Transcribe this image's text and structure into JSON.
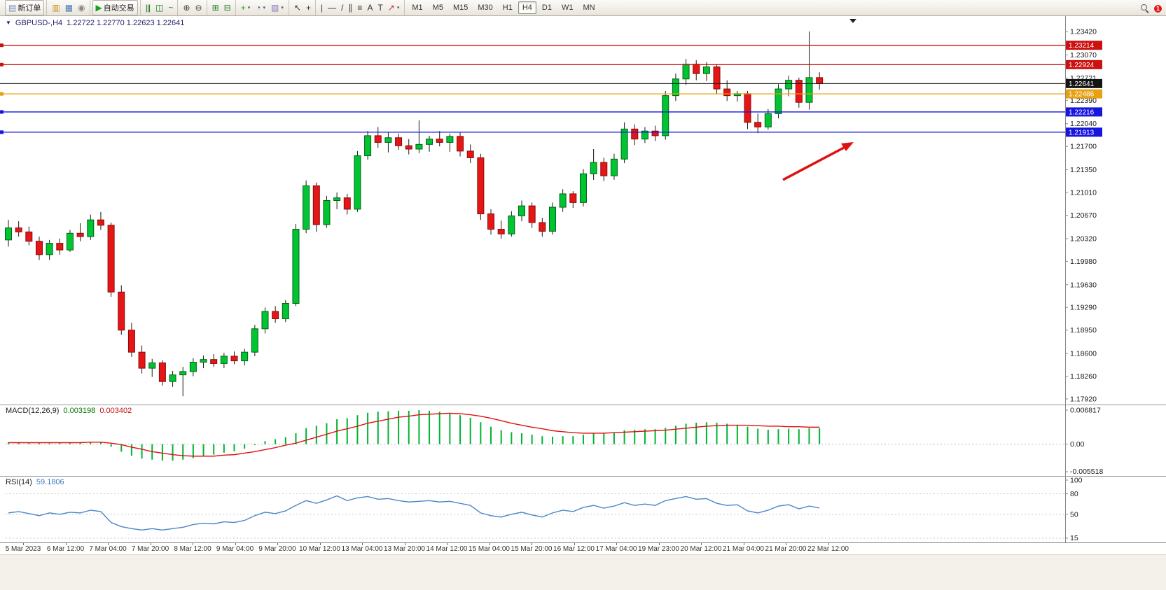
{
  "toolbar": {
    "groups": [
      [
        {
          "name": "new-order-button",
          "glyph": "▤",
          "glyph_color": "#7a90b8",
          "text": "新订单",
          "raised": true
        }
      ],
      [
        {
          "name": "market-watch-button",
          "glyph": "▥",
          "glyph_color": "#c89018"
        },
        {
          "name": "data-window-button",
          "glyph": "▦",
          "glyph_color": "#4878b8"
        },
        {
          "name": "navigator-button",
          "glyph": "◉",
          "glyph_color": "#8a877d"
        }
      ],
      [
        {
          "name": "autotrade-button",
          "glyph": "▶",
          "glyph_color": "#18a018",
          "text": "自动交易",
          "raised": true
        }
      ],
      [
        {
          "name": "bar-chart-button",
          "glyph": "|||",
          "glyph_color": "#1f7a1f"
        },
        {
          "name": "candlestick-button",
          "glyph": "◫",
          "glyph_color": "#1f7a1f"
        },
        {
          "name": "line-chart-button",
          "glyph": "~",
          "glyph_color": "#1f7a1f"
        }
      ],
      [
        {
          "name": "zoom-in-button",
          "glyph": "⊕",
          "glyph_color": "#444444"
        },
        {
          "name": "zoom-out-button",
          "glyph": "⊖",
          "glyph_color": "#444444"
        }
      ],
      [
        {
          "name": "tile-windows-button",
          "glyph": "⊞",
          "glyph_color": "#1f7a1f"
        },
        {
          "name": "arrange-windows-button",
          "glyph": "⊟",
          "glyph_color": "#1f7a1f"
        }
      ],
      [
        {
          "name": "new-chart-button",
          "glyph": "+",
          "glyph_color": "#18a018",
          "dropdown": true
        },
        {
          "name": "period-button",
          "glyph": "◔",
          "glyph_color": "#3868a8",
          "dropdown": true
        },
        {
          "name": "template-button",
          "glyph": "▧",
          "glyph_color": "#8878b8",
          "dropdown": true
        }
      ],
      [
        {
          "name": "cursor-button",
          "glyph": "↖",
          "glyph_color": "#303030"
        },
        {
          "name": "crosshair-button",
          "glyph": "+",
          "glyph_color": "#303030"
        }
      ],
      [
        {
          "name": "vertical-line-button",
          "glyph": "|",
          "glyph_color": "#303030"
        },
        {
          "name": "horizontal-line-button",
          "glyph": "—",
          "glyph_color": "#303030"
        },
        {
          "name": "trendline-button",
          "glyph": "/",
          "glyph_color": "#303030"
        },
        {
          "name": "channel-button",
          "glyph": "∥",
          "glyph_color": "#303030"
        },
        {
          "name": "fibonacci-button",
          "glyph": "≡",
          "glyph_color": "#303030"
        },
        {
          "name": "text-button",
          "glyph": "A",
          "glyph_color": "#303030"
        },
        {
          "name": "label-button",
          "glyph": "T",
          "glyph_color": "#303030"
        },
        {
          "name": "arrows-button",
          "glyph": "↗",
          "glyph_color": "#c03030",
          "dropdown": true
        }
      ]
    ],
    "timeframes": [
      {
        "label": "M1"
      },
      {
        "label": "M5"
      },
      {
        "label": "M15"
      },
      {
        "label": "M30"
      },
      {
        "label": "H1"
      },
      {
        "label": "H4",
        "active": true
      },
      {
        "label": "D1"
      },
      {
        "label": "W1"
      },
      {
        "label": "MN"
      }
    ],
    "notification_count": "1"
  },
  "chart": {
    "collapse_glyph": "▼",
    "symbol_label": "GBPUSD-,H4",
    "ohlc_text": "1.22722 1.22770 1.22623 1.22641",
    "axis": {
      "price_max": 1.2342,
      "price_min": 1.1792,
      "price_ticks": [
        "1.23420",
        "1.23070",
        "1.22721",
        "1.22390",
        "1.22040",
        "1.21700",
        "1.21350",
        "1.21010",
        "1.20670",
        "1.20320",
        "1.19980",
        "1.19630",
        "1.19290",
        "1.18950",
        "1.18600",
        "1.18260",
        "1.17920"
      ]
    },
    "levels": [
      {
        "price": 1.23214,
        "label": "1.23214",
        "color": "#cc1111",
        "type": "line"
      },
      {
        "price": 1.22924,
        "label": "1.22924",
        "color": "#cc1111",
        "type": "line"
      },
      {
        "price": 1.22641,
        "label": "1.22641",
        "color": "#141414",
        "type": "current"
      },
      {
        "price": 1.22486,
        "label": "1.22486",
        "color": "#e6a012",
        "type": "line"
      },
      {
        "price": 1.22216,
        "label": "1.22216",
        "color": "#1616dd",
        "type": "line"
      },
      {
        "price": 1.21913,
        "label": "1.21913",
        "color": "#1616dd",
        "type": "line"
      }
    ],
    "dates": [
      "5 Mar 2023",
      "6 Mar 12:00",
      "7 Mar 04:00",
      "7 Mar 20:00",
      "8 Mar 12:00",
      "9 Mar 04:00",
      "9 Mar 20:00",
      "10 Mar 12:00",
      "13 Mar 04:00",
      "13 Mar 20:00",
      "14 Mar 12:00",
      "15 Mar 04:00",
      "15 Mar 20:00",
      "16 Mar 12:00",
      "17 Mar 04:00",
      "19 Mar 23:00",
      "20 Mar 12:00",
      "21 Mar 04:00",
      "21 Mar 20:00",
      "22 Mar 12:00"
    ],
    "candles": [
      [
        1.203,
        1.206,
        1.202,
        1.2048
      ],
      [
        1.2048,
        1.2058,
        1.2035,
        1.2042
      ],
      [
        1.2042,
        1.205,
        1.2022,
        1.2028
      ],
      [
        1.2028,
        1.2035,
        1.2,
        1.2008
      ],
      [
        1.2008,
        1.203,
        1.2,
        1.2025
      ],
      [
        1.2025,
        1.2032,
        1.2008,
        1.2015
      ],
      [
        1.2015,
        1.2045,
        1.2012,
        1.204
      ],
      [
        1.204,
        1.2055,
        1.2028,
        1.2035
      ],
      [
        1.2035,
        1.2068,
        1.203,
        1.206
      ],
      [
        1.206,
        1.2072,
        1.2045,
        1.2052
      ],
      [
        1.2052,
        1.2056,
        1.1945,
        1.1952
      ],
      [
        1.1952,
        1.1962,
        1.1888,
        1.1895
      ],
      [
        1.1895,
        1.1906,
        1.1855,
        1.1862
      ],
      [
        1.1862,
        1.1872,
        1.183,
        1.1838
      ],
      [
        1.1838,
        1.1852,
        1.1825,
        1.1846
      ],
      [
        1.1846,
        1.185,
        1.1812,
        1.1818
      ],
      [
        1.1818,
        1.1834,
        1.181,
        1.1828
      ],
      [
        1.1828,
        1.184,
        1.1796,
        1.1833
      ],
      [
        1.1833,
        1.1853,
        1.1826,
        1.1847
      ],
      [
        1.1847,
        1.1857,
        1.1838,
        1.1851
      ],
      [
        1.1851,
        1.1859,
        1.184,
        1.1845
      ],
      [
        1.1845,
        1.1861,
        1.1838,
        1.1856
      ],
      [
        1.1856,
        1.1863,
        1.1844,
        1.1849
      ],
      [
        1.1849,
        1.1867,
        1.1842,
        1.1862
      ],
      [
        1.1862,
        1.1903,
        1.1856,
        1.1897
      ],
      [
        1.1897,
        1.1929,
        1.189,
        1.1923
      ],
      [
        1.1923,
        1.1931,
        1.1906,
        1.1912
      ],
      [
        1.1912,
        1.194,
        1.1907,
        1.1935
      ],
      [
        1.1935,
        1.2054,
        1.1931,
        1.2046
      ],
      [
        1.2046,
        1.2119,
        1.204,
        1.2111
      ],
      [
        1.2111,
        1.2116,
        1.2042,
        1.2053
      ],
      [
        1.2053,
        1.2096,
        1.2048,
        1.2089
      ],
      [
        1.2089,
        1.2101,
        1.2076,
        1.2093
      ],
      [
        1.2093,
        1.2099,
        1.2068,
        1.2076
      ],
      [
        1.2076,
        1.2163,
        1.2072,
        1.2156
      ],
      [
        1.2156,
        1.2193,
        1.215,
        1.2186
      ],
      [
        1.2186,
        1.2199,
        1.2168,
        1.2176
      ],
      [
        1.2176,
        1.2191,
        1.2161,
        1.2183
      ],
      [
        1.2183,
        1.2189,
        1.2165,
        1.2171
      ],
      [
        1.2171,
        1.2181,
        1.2158,
        1.2166
      ],
      [
        1.2166,
        1.2209,
        1.216,
        1.2173
      ],
      [
        1.2173,
        1.2186,
        1.2162,
        1.2181
      ],
      [
        1.2181,
        1.2193,
        1.217,
        1.2176
      ],
      [
        1.2176,
        1.2189,
        1.2162,
        1.2185
      ],
      [
        1.2185,
        1.2191,
        1.2155,
        1.2163
      ],
      [
        1.2163,
        1.2173,
        1.2145,
        1.2153
      ],
      [
        1.2153,
        1.2159,
        1.206,
        1.2069
      ],
      [
        1.2069,
        1.2076,
        1.2038,
        1.2046
      ],
      [
        1.2046,
        1.2059,
        1.2032,
        1.2039
      ],
      [
        1.2039,
        1.2073,
        1.2035,
        1.2066
      ],
      [
        1.2066,
        1.2089,
        1.2058,
        1.2081
      ],
      [
        1.2081,
        1.2086,
        1.2048,
        1.2056
      ],
      [
        1.2056,
        1.2063,
        1.2035,
        1.2043
      ],
      [
        1.2043,
        1.2086,
        1.2038,
        1.2079
      ],
      [
        1.2079,
        1.2106,
        1.2072,
        1.2099
      ],
      [
        1.2099,
        1.2103,
        1.2078,
        1.2086
      ],
      [
        1.2086,
        1.2136,
        1.208,
        1.2129
      ],
      [
        1.2129,
        1.2166,
        1.212,
        1.2146
      ],
      [
        1.2146,
        1.2153,
        1.2118,
        1.2126
      ],
      [
        1.2126,
        1.2159,
        1.212,
        1.2151
      ],
      [
        1.2151,
        1.2206,
        1.2145,
        1.2196
      ],
      [
        1.2196,
        1.2203,
        1.2172,
        1.2181
      ],
      [
        1.2181,
        1.2199,
        1.2175,
        1.2193
      ],
      [
        1.2193,
        1.2201,
        1.2178,
        1.2186
      ],
      [
        1.2186,
        1.2253,
        1.218,
        1.2246
      ],
      [
        1.2246,
        1.2279,
        1.2238,
        1.2271
      ],
      [
        1.2271,
        1.2301,
        1.2262,
        1.2293
      ],
      [
        1.2293,
        1.2299,
        1.2269,
        1.2279
      ],
      [
        1.2279,
        1.2296,
        1.2268,
        1.2289
      ],
      [
        1.2289,
        1.2293,
        1.2248,
        1.2256
      ],
      [
        1.2256,
        1.2269,
        1.2238,
        1.2246
      ],
      [
        1.2246,
        1.2253,
        1.2237,
        1.2249
      ],
      [
        1.2249,
        1.2253,
        1.2196,
        1.2206
      ],
      [
        1.2206,
        1.2219,
        1.219,
        1.2199
      ],
      [
        1.2199,
        1.2226,
        1.2195,
        1.2219
      ],
      [
        1.2219,
        1.2263,
        1.2212,
        1.2256
      ],
      [
        1.2256,
        1.2276,
        1.2245,
        1.2269
      ],
      [
        1.2269,
        1.2273,
        1.2228,
        1.2236
      ],
      [
        1.2236,
        1.2342,
        1.2225,
        1.2273
      ],
      [
        1.2273,
        1.2281,
        1.2255,
        1.22641
      ]
    ]
  },
  "macd": {
    "title": "MACD(12,26,9)",
    "value_main": "0.003198",
    "value_signal": "0.003402",
    "axis": [
      "0.006817",
      "0.00",
      "-0.005518"
    ],
    "histogram": [
      0.0004,
      0.0004,
      0.0003,
      0.0002,
      0.0002,
      0.0003,
      0.0003,
      0.0004,
      0.0005,
      0.0005,
      -0.0005,
      -0.0015,
      -0.0023,
      -0.0029,
      -0.0031,
      -0.0033,
      -0.0033,
      -0.0031,
      -0.0028,
      -0.0024,
      -0.0021,
      -0.0017,
      -0.0014,
      -0.0009,
      -0.0002,
      0.0006,
      0.001,
      0.0014,
      0.0022,
      0.0032,
      0.0037,
      0.0042,
      0.005,
      0.0052,
      0.0058,
      0.0063,
      0.0065,
      0.0066,
      0.0067,
      0.0067,
      0.0068,
      0.0067,
      0.0065,
      0.0062,
      0.0058,
      0.0053,
      0.0044,
      0.0035,
      0.0028,
      0.0024,
      0.0022,
      0.0019,
      0.0016,
      0.0015,
      0.0016,
      0.0016,
      0.0019,
      0.0022,
      0.0023,
      0.0024,
      0.0028,
      0.0029,
      0.003,
      0.003,
      0.0033,
      0.0037,
      0.0041,
      0.0043,
      0.0044,
      0.0043,
      0.0041,
      0.0039,
      0.0035,
      0.0031,
      0.0029,
      0.003,
      0.0031,
      0.003,
      0.0032,
      0.0032
    ],
    "signal": [
      0.0003,
      0.0003,
      0.0003,
      0.0003,
      0.0003,
      0.0003,
      0.0003,
      0.0003,
      0.0004,
      0.0004,
      0.0002,
      -0.0001,
      -0.0006,
      -0.001,
      -0.0015,
      -0.0018,
      -0.0021,
      -0.0023,
      -0.0024,
      -0.0024,
      -0.0024,
      -0.0022,
      -0.0021,
      -0.0018,
      -0.0015,
      -0.0011,
      -0.0007,
      -0.0002,
      0.0002,
      0.0008,
      0.0014,
      0.002,
      0.0026,
      0.0031,
      0.0036,
      0.0042,
      0.0046,
      0.005,
      0.0054,
      0.0056,
      0.0059,
      0.006,
      0.0061,
      0.0062,
      0.0061,
      0.0059,
      0.0056,
      0.0052,
      0.0047,
      0.0042,
      0.0038,
      0.0034,
      0.0031,
      0.0027,
      0.0025,
      0.0023,
      0.0022,
      0.0022,
      0.0022,
      0.0023,
      0.0024,
      0.0025,
      0.0026,
      0.0027,
      0.0028,
      0.003,
      0.0032,
      0.0034,
      0.0036,
      0.0037,
      0.0038,
      0.0038,
      0.0038,
      0.0037,
      0.0036,
      0.0036,
      0.0035,
      0.0035,
      0.0034,
      0.0034
    ]
  },
  "rsi": {
    "title": "RSI(14)",
    "value": "59.1806",
    "axis": [
      "100",
      "80",
      "50",
      "15"
    ],
    "values": [
      52,
      54,
      51,
      48,
      52,
      50,
      53,
      52,
      56,
      54,
      38,
      32,
      29,
      27,
      29,
      27,
      29,
      31,
      35,
      37,
      36,
      39,
      38,
      41,
      48,
      53,
      51,
      55,
      63,
      70,
      66,
      71,
      77,
      70,
      74,
      76,
      72,
      73,
      70,
      68,
      69,
      70,
      68,
      69,
      66,
      63,
      52,
      48,
      46,
      50,
      53,
      49,
      46,
      52,
      56,
      54,
      60,
      63,
      59,
      62,
      67,
      63,
      65,
      63,
      70,
      73,
      76,
      72,
      73,
      66,
      63,
      64,
      55,
      52,
      56,
      62,
      64,
      58,
      62,
      59.18
    ]
  },
  "colors": {
    "candle_up": "#00C432",
    "candle_up_border": "#006414",
    "candle_down": "#E41616",
    "candle_down_border": "#8c0808",
    "macd_histogram": "#00B432",
    "macd_signal": "#e01010",
    "rsi_line": "#4a86c8",
    "arrow": "#e01010"
  }
}
